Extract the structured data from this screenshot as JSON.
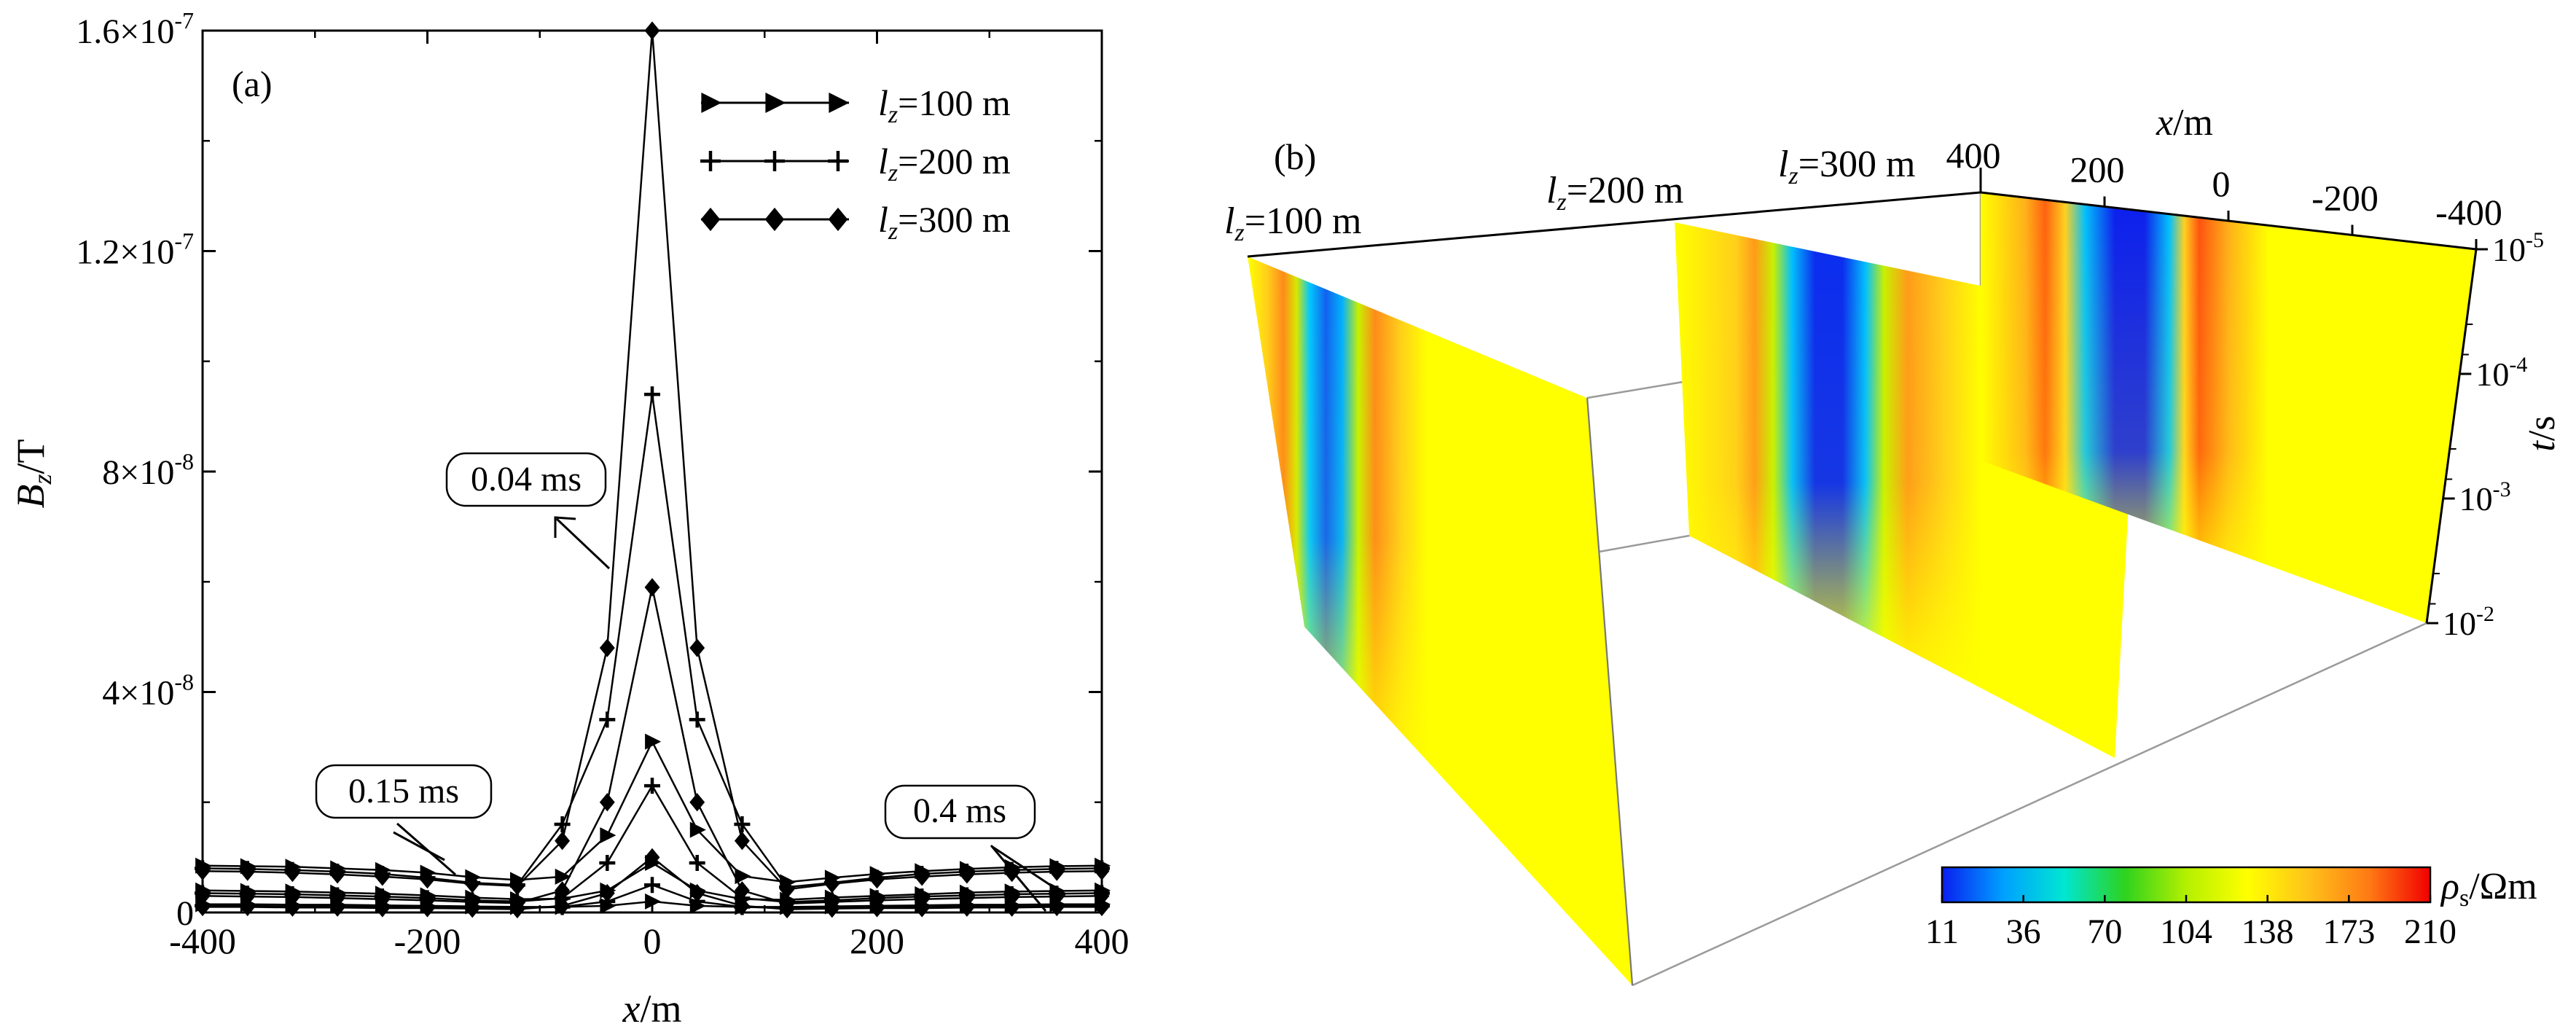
{
  "chart_data": [
    {
      "panel_label": "(a)",
      "type": "line",
      "xlabel": "x/m",
      "ylabel": "Bz/T",
      "xlim": [
        -400,
        400
      ],
      "ylim": [
        0,
        1.6e-07
      ],
      "x_ticks": [
        -400,
        -200,
        0,
        200,
        400
      ],
      "y_ticks": [
        {
          "value": 0,
          "label": "0"
        },
        {
          "value": 4e-08,
          "label": "4×10-8"
        },
        {
          "value": 8e-08,
          "label": "8×10-8"
        },
        {
          "value": 1.2e-07,
          "label": "1.2×10-7"
        },
        {
          "value": 1.6e-07,
          "label": "1.6×10-7"
        }
      ],
      "x": [
        -400,
        -360,
        -320,
        -280,
        -240,
        -200,
        -160,
        -120,
        -80,
        -40,
        0,
        40,
        80,
        120,
        160,
        200,
        240,
        280,
        320,
        360,
        400
      ],
      "series": [
        {
          "name": "lz=100 m",
          "marker": "triangle",
          "time": "0.04 ms",
          "values": [
            8.5e-09,
            8.4e-09,
            8.3e-09,
            8e-09,
            7.7e-09,
            7.2e-09,
            6.4e-09,
            5.9e-09,
            6.5e-09,
            1.4e-08,
            3.1e-08,
            1.5e-08,
            6.6e-09,
            5.5e-09,
            6.3e-09,
            7e-09,
            7.5e-09,
            7.9e-09,
            8.2e-09,
            8.4e-09,
            8.5e-09
          ]
        },
        {
          "name": "lz=200 m",
          "marker": "plus",
          "time": "0.04 ms",
          "values": [
            8e-09,
            7.9e-09,
            7.7e-09,
            7.4e-09,
            7e-09,
            6.3e-09,
            5.4e-09,
            5e-09,
            1.6e-08,
            3.5e-08,
            9.4e-08,
            3.5e-08,
            1.6e-08,
            4.6e-09,
            5.4e-09,
            6.3e-09,
            7e-09,
            7.4e-09,
            7.7e-09,
            7.9e-09,
            8e-09
          ]
        },
        {
          "name": "lz=300 m",
          "marker": "diamond",
          "time": "0.04 ms",
          "values": [
            7.5e-09,
            7.4e-09,
            7.2e-09,
            6.9e-09,
            6.5e-09,
            6e-09,
            5.2e-09,
            4.8e-09,
            1.3e-08,
            4.8e-08,
            1.6e-07,
            4.8e-08,
            1.3e-08,
            4.2e-09,
            5.2e-09,
            6e-09,
            6.5e-09,
            6.9e-09,
            7.2e-09,
            7.4e-09,
            7.5e-09
          ]
        },
        {
          "name": "lz=100 m",
          "marker": "triangle",
          "time": "0.15 ms",
          "values": [
            4e-09,
            3.9e-09,
            3.8e-09,
            3.6e-09,
            3.4e-09,
            3.1e-09,
            2.7e-09,
            2.4e-09,
            2.5e-09,
            4e-09,
            9e-09,
            4e-09,
            2.4e-09,
            2.3e-09,
            2.7e-09,
            3e-09,
            3.3e-09,
            3.6e-09,
            3.8e-09,
            3.9e-09,
            4e-09
          ]
        },
        {
          "name": "lz=200 m",
          "marker": "plus",
          "time": "0.15 ms",
          "values": [
            3.5e-09,
            3.4e-09,
            3.3e-09,
            3.1e-09,
            2.9e-09,
            2.6e-09,
            2.2e-09,
            2e-09,
            2.6e-09,
            9e-09,
            2.3e-08,
            9e-09,
            2.6e-09,
            1.9e-09,
            2.2e-09,
            2.6e-09,
            2.9e-09,
            3.1e-09,
            3.3e-09,
            3.4e-09,
            3.5e-09
          ]
        },
        {
          "name": "lz=300 m",
          "marker": "diamond",
          "time": "0.15 ms",
          "values": [
            3e-09,
            2.9e-09,
            2.8e-09,
            2.6e-09,
            2.4e-09,
            2.2e-09,
            1.9e-09,
            1.7e-09,
            4e-09,
            2e-08,
            5.9e-08,
            2e-08,
            4e-09,
            1.6e-09,
            1.9e-09,
            2.2e-09,
            2.4e-09,
            2.6e-09,
            2.8e-09,
            2.9e-09,
            3e-09
          ]
        },
        {
          "name": "lz=100 m",
          "marker": "triangle",
          "time": "0.4 ms",
          "values": [
            1.5e-09,
            1.5e-09,
            1.4e-09,
            1.4e-09,
            1.3e-09,
            1.2e-09,
            1.1e-09,
            1e-09,
            1e-09,
            1.2e-09,
            2e-09,
            1.2e-09,
            1e-09,
            1e-09,
            1.1e-09,
            1.2e-09,
            1.3e-09,
            1.4e-09,
            1.4e-09,
            1.5e-09,
            1.5e-09
          ]
        },
        {
          "name": "lz=200 m",
          "marker": "plus",
          "time": "0.4 ms",
          "values": [
            1.2e-09,
            1.2e-09,
            1.1e-09,
            1.1e-09,
            1e-09,
            1e-09,
            9e-10,
            8e-10,
            1e-09,
            2e-09,
            5e-09,
            2e-09,
            1e-09,
            8e-10,
            9e-10,
            1e-09,
            1e-09,
            1.1e-09,
            1.1e-09,
            1.2e-09,
            1.2e-09
          ]
        },
        {
          "name": "lz=300 m",
          "marker": "diamond",
          "time": "0.4 ms",
          "values": [
            1e-09,
            1e-09,
            9e-10,
            9e-10,
            8e-10,
            8e-10,
            7e-10,
            6e-10,
            1.2e-09,
            3.5e-09,
            1e-08,
            3.5e-09,
            1.2e-09,
            6e-10,
            7e-10,
            8e-10,
            8e-10,
            9e-10,
            9e-10,
            1e-09,
            1e-09
          ]
        }
      ],
      "legend": [
        {
          "label": "lz=100 m",
          "marker": "triangle"
        },
        {
          "label": "lz=200 m",
          "marker": "plus"
        },
        {
          "label": "lz=300 m",
          "marker": "diamond"
        }
      ],
      "legend_position": "top-right",
      "annotations": [
        "0.04 ms",
        "0.15 ms",
        "0.4 ms"
      ]
    },
    {
      "panel_label": "(b)",
      "type": "heatmap",
      "view": "3d-slices",
      "slices": [
        "lz=100 m",
        "lz=200 m",
        "lz=300 m"
      ],
      "xlabel": "x/m",
      "x_ticks": [
        "400",
        "200",
        "0",
        "-200",
        "-400"
      ],
      "tlabel": "t/s",
      "t_ticks": [
        "10-5",
        "10-4",
        "10-3",
        "10-2"
      ],
      "tlim": [
        1e-05,
        0.01
      ],
      "t_scale": "log",
      "colorbar": {
        "label": "ρs/Ωm",
        "ticks": [
          "11",
          "36",
          "70",
          "104",
          "138",
          "173",
          "210"
        ],
        "range": [
          11,
          210
        ],
        "colors": [
          "#0a1ef0",
          "#00a0ff",
          "#00e6d2",
          "#2ed21e",
          "#b4f000",
          "#ffff00",
          "#ffc21a",
          "#ff7a14",
          "#f00000"
        ]
      }
    }
  ]
}
